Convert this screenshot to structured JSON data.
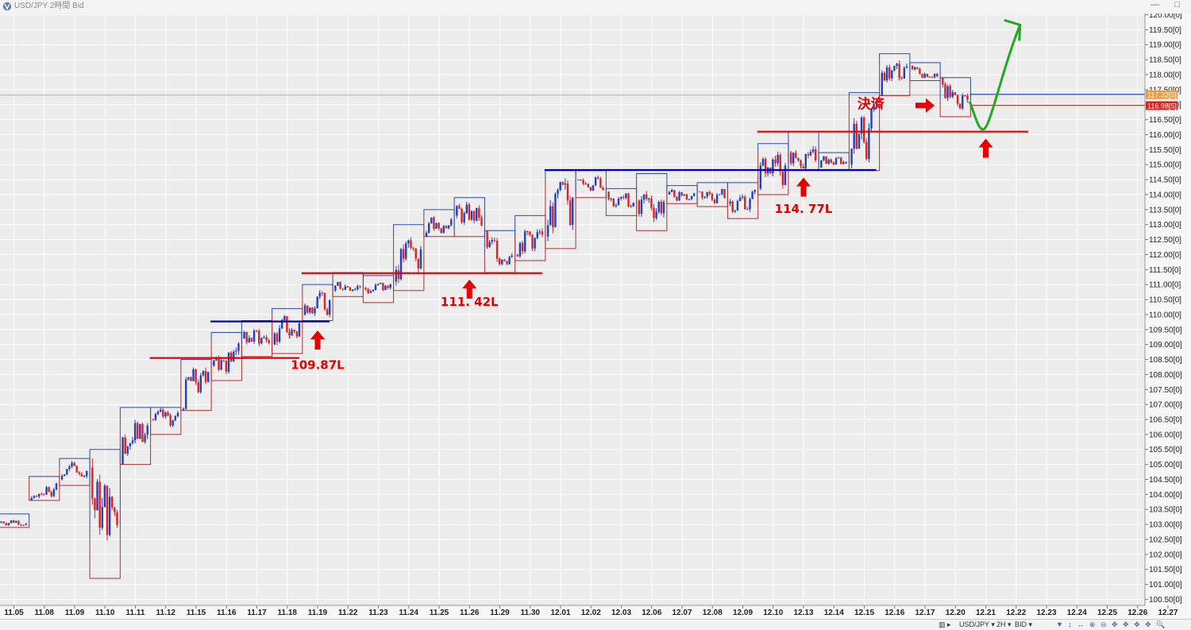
{
  "window": {
    "title": "USD/JPY 2時間 Bid",
    "controls": [
      "—",
      "□"
    ]
  },
  "statusbar": {
    "symbol": "USD/JPY ▾",
    "timeframe": "2H ▾",
    "price_side": "BID ▾",
    "tools": "▼ ↕ ↔ ⊕ ⊖ ✥ ✥ ✥ ✥ 🔍"
  },
  "chart_data": {
    "type": "candlestick",
    "x_labels": [
      "11.05",
      "11.08",
      "11.09",
      "11.10",
      "11.11",
      "11.12",
      "11.15",
      "11.16",
      "11.17",
      "11.18",
      "11.19",
      "11.22",
      "11.23",
      "11.24",
      "11.25",
      "11.26",
      "11.29",
      "11.30",
      "12.01",
      "12.02",
      "12.03",
      "12.06",
      "12.07",
      "12.08",
      "12.09",
      "12.10",
      "12.13",
      "12.14",
      "12.15",
      "12.16",
      "12.17",
      "12.20",
      "12.21",
      "12.22",
      "12.23",
      "12.24",
      "12.25",
      "12.26",
      "12.27"
    ],
    "y_ticks": [
      "120.00[0]",
      "119.50[0]",
      "119.00[0]",
      "118.50[0]",
      "118.00[0]",
      "117.50[0]",
      "117.00[0]",
      "116.50[0]",
      "116.00[0]",
      "115.50[0]",
      "115.00[0]",
      "114.50[0]",
      "114.00[0]",
      "113.50[0]",
      "113.00[0]",
      "112.50[0]",
      "112.00[0]",
      "111.50[0]",
      "111.00[0]",
      "110.50[0]",
      "110.00[0]",
      "109.50[0]",
      "109.00[0]",
      "108.50[0]",
      "108.00[0]",
      "107.50[0]",
      "107.00[0]",
      "106.50[0]",
      "106.00[0]",
      "105.50[0]",
      "105.00[0]",
      "104.50[0]",
      "104.00[0]",
      "103.50[0]",
      "103.00[0]",
      "102.50[0]",
      "102.00[0]",
      "101.50[0]",
      "101.00[0]",
      "100.50[0]"
    ],
    "ylim": [
      100.3,
      120.0
    ],
    "current_ask": "117.32[5]",
    "current_bid": "116.98[5]",
    "ask_value": 117.32,
    "bid_value": 116.98,
    "day_ranges": [
      {
        "day": "11.05",
        "low": 102.9,
        "high": 103.35,
        "close": 103.05
      },
      {
        "day": "11.08",
        "low": 103.8,
        "high": 104.6,
        "close": 104.5
      },
      {
        "day": "11.09",
        "low": 104.3,
        "high": 105.2,
        "close": 104.9
      },
      {
        "day": "11.10",
        "low": 101.2,
        "high": 105.5,
        "close": 102.7
      },
      {
        "day": "11.11",
        "low": 105.0,
        "high": 106.9,
        "close": 106.5
      },
      {
        "day": "11.12",
        "low": 106.0,
        "high": 106.9,
        "close": 106.8
      },
      {
        "day": "11.15",
        "low": 106.8,
        "high": 108.5,
        "close": 108.3
      },
      {
        "day": "11.16",
        "low": 107.8,
        "high": 109.4,
        "close": 109.2
      },
      {
        "day": "11.17",
        "low": 108.6,
        "high": 109.8,
        "close": 109.0
      },
      {
        "day": "11.18",
        "low": 108.7,
        "high": 110.2,
        "close": 110.0
      },
      {
        "day": "11.19",
        "low": 109.8,
        "high": 111.0,
        "close": 110.8
      },
      {
        "day": "11.22",
        "low": 110.6,
        "high": 111.4,
        "close": 110.9
      },
      {
        "day": "11.23",
        "low": 110.4,
        "high": 111.3,
        "close": 111.1
      },
      {
        "day": "11.24",
        "low": 110.8,
        "high": 113.0,
        "close": 112.6
      },
      {
        "day": "11.25",
        "low": 112.6,
        "high": 113.5,
        "close": 113.3
      },
      {
        "day": "11.26",
        "low": 112.6,
        "high": 113.9,
        "close": 112.8
      },
      {
        "day": "11.29",
        "low": 111.4,
        "high": 112.8,
        "close": 112.0
      },
      {
        "day": "11.30",
        "low": 111.8,
        "high": 113.3,
        "close": 112.6
      },
      {
        "day": "12.01",
        "low": 112.2,
        "high": 114.8,
        "close": 114.5
      },
      {
        "day": "12.02",
        "low": 113.9,
        "high": 114.8,
        "close": 114.1
      },
      {
        "day": "12.03",
        "low": 113.3,
        "high": 114.2,
        "close": 113.8
      },
      {
        "day": "12.06",
        "low": 112.8,
        "high": 114.7,
        "close": 114.0
      },
      {
        "day": "12.07",
        "low": 113.7,
        "high": 114.3,
        "close": 114.1
      },
      {
        "day": "12.08",
        "low": 113.6,
        "high": 114.4,
        "close": 113.7
      },
      {
        "day": "12.09",
        "low": 113.2,
        "high": 114.4,
        "close": 114.2
      },
      {
        "day": "12.10",
        "low": 114.0,
        "high": 115.7,
        "close": 115.4
      },
      {
        "day": "12.13",
        "low": 114.8,
        "high": 116.1,
        "close": 114.9
      },
      {
        "day": "12.14",
        "low": 114.8,
        "high": 115.4,
        "close": 115.0
      },
      {
        "day": "12.15",
        "low": 114.8,
        "high": 117.4,
        "close": 117.2
      },
      {
        "day": "12.16",
        "low": 117.3,
        "high": 118.7,
        "close": 118.3
      },
      {
        "day": "12.17",
        "low": 117.8,
        "high": 118.4,
        "close": 117.9
      },
      {
        "day": "12.20",
        "low": 116.6,
        "high": 117.9,
        "close": 117.1
      }
    ],
    "support_lines": [
      {
        "price": 108.55,
        "from_day": "11.12",
        "to_day": "11.18",
        "color": "#e60000"
      },
      {
        "price": 109.77,
        "from_day": "11.16",
        "to_day": "11.19",
        "color": "#0000cc"
      },
      {
        "price": 111.38,
        "from_day": "11.19",
        "to_day": "11.30",
        "color": "#e60000"
      },
      {
        "price": 114.82,
        "from_day": "12.01",
        "to_day": "12.15",
        "color": "#0000cc"
      },
      {
        "price": 116.1,
        "from_day": "12.10",
        "to_day": "12.22",
        "color": "#e60000"
      }
    ],
    "annotations": [
      {
        "text": "109.87L",
        "day": "11.19",
        "price": 108.4
      },
      {
        "text": "111. 42L",
        "day": "11.26",
        "price": 110.5
      },
      {
        "text": "114. 77L",
        "day": "12.13",
        "price": 113.6
      },
      {
        "text": "決済",
        "day": "12.16",
        "price": 117.0
      }
    ],
    "up_arrows": [
      {
        "day": "11.19",
        "price": 109.6
      },
      {
        "day": "11.26",
        "price": 111.3
      },
      {
        "day": "12.13",
        "price": 114.7
      },
      {
        "day": "12.21",
        "price": 116.0
      }
    ],
    "right_arrow": {
      "day": "12.17",
      "price": 117.0
    },
    "forecast": [
      {
        "day": "12.20",
        "price": 117.1
      },
      {
        "day": "12.21",
        "price": 116.25
      },
      {
        "day": "12.22",
        "price": 119.5
      }
    ],
    "colors": {
      "up": "#2040c0",
      "down": "#e02020",
      "box_up": "#2a4aa8",
      "box_down": "#b03030",
      "grid": "#ffffff",
      "background": "#ececec",
      "forecast": "#1faa1f",
      "annotation": "#e60000",
      "ask_line": "#f0a060"
    }
  }
}
